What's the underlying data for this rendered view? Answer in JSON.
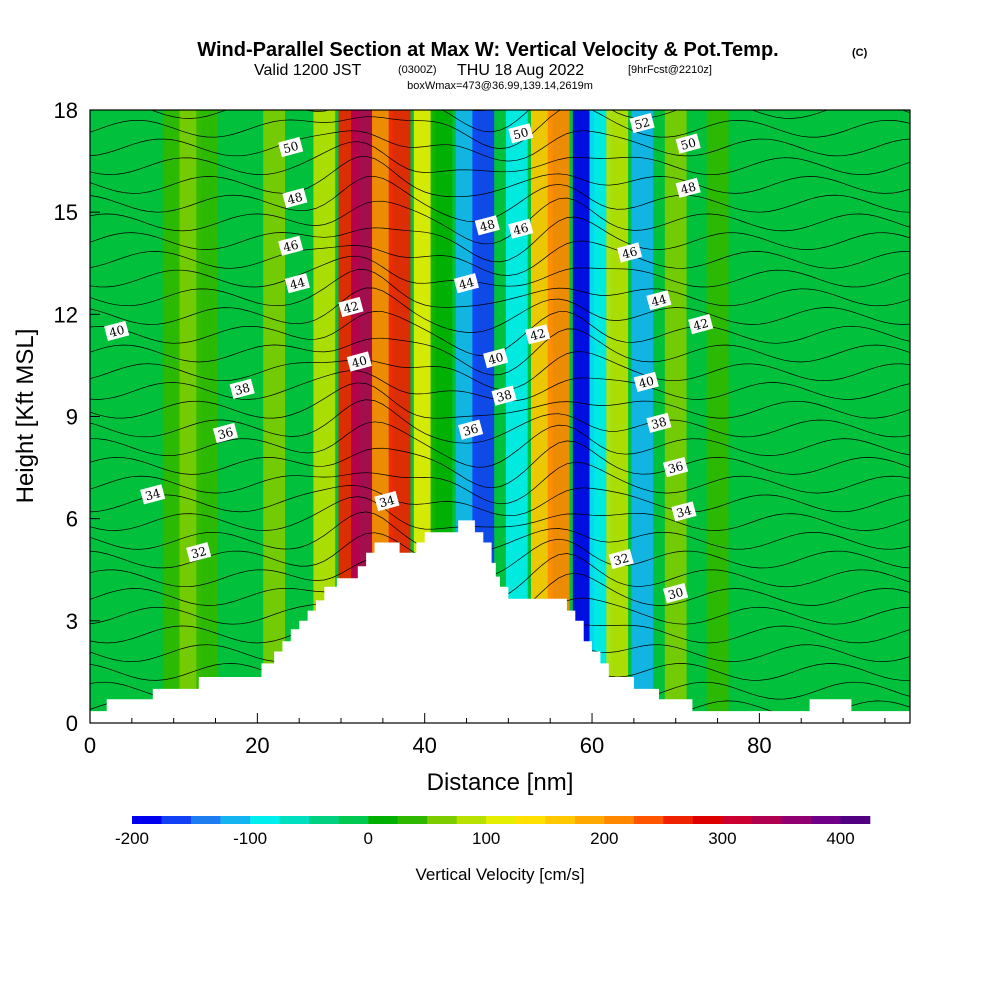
{
  "title": {
    "main": "Wind-Parallel Section at Max W: Vertical Velocity & Pot.Temp.",
    "copyright": "(C)",
    "valid_prefix": "Valid 1200 JST",
    "valid_utc": "(0300Z)",
    "valid_date": "THU 18 Aug 2022",
    "forecast": "[9hrFcst@2210z]",
    "box_info": "boxWmax=473@36.99,139.14,2619m"
  },
  "chart_data": {
    "type": "heatmap",
    "xlabel": "Distance [nm]",
    "ylabel": "Height [Kft MSL]",
    "xlim": [
      0,
      98
    ],
    "ylim": [
      0,
      18
    ],
    "x_ticks": [
      0,
      20,
      40,
      60,
      80
    ],
    "y_ticks": [
      0,
      3,
      6,
      9,
      12,
      15,
      18
    ],
    "colorbar": {
      "label": "Vertical Velocity [cm/s]",
      "ticks": [
        -200,
        -100,
        0,
        100,
        200,
        300,
        400
      ],
      "range": [
        -200,
        425
      ],
      "bin": 25,
      "colors": [
        "#0000ee",
        "#1140f5",
        "#1c7cf0",
        "#14b4f0",
        "#00eeee",
        "#00e0c0",
        "#00d080",
        "#00c850",
        "#00b000",
        "#2fb800",
        "#7ccc00",
        "#b8e000",
        "#e6ee00",
        "#ffe000",
        "#ffc800",
        "#ffa800",
        "#ff8800",
        "#ff5500",
        "#ee2200",
        "#dd0000",
        "#cc0030",
        "#b00050",
        "#900070",
        "#700088",
        "#500080"
      ]
    },
    "vertical_velocity_columns": [
      {
        "x": 10,
        "w": 40
      },
      {
        "x": 12,
        "w": 60
      },
      {
        "x": 14,
        "w": 35
      },
      {
        "x": 22,
        "w": 50
      },
      {
        "x": 28,
        "w": 80
      },
      {
        "x": 31,
        "w": 250
      },
      {
        "x": 32.5,
        "w": 330
      },
      {
        "x": 35,
        "w": 220
      },
      {
        "x": 37,
        "w": 250
      },
      {
        "x": 40,
        "w": 120
      },
      {
        "x": 42,
        "w": 20
      },
      {
        "x": 45,
        "w": -110
      },
      {
        "x": 47,
        "w": -160
      },
      {
        "x": 51,
        "w": -100
      },
      {
        "x": 54,
        "w": 150
      },
      {
        "x": 56,
        "w": 200
      },
      {
        "x": 59,
        "w": -190
      },
      {
        "x": 61,
        "w": -80
      },
      {
        "x": 63,
        "w": 90
      },
      {
        "x": 66,
        "w": -120
      },
      {
        "x": 70,
        "w": 50
      },
      {
        "x": 75,
        "w": 40
      }
    ],
    "terrain_profile": [
      {
        "x": 0,
        "h": 0.35
      },
      {
        "x": 2,
        "h": 0.7
      },
      {
        "x": 7.5,
        "h": 1.0
      },
      {
        "x": 13,
        "h": 1.35
      },
      {
        "x": 20.5,
        "h": 1.75
      },
      {
        "x": 22,
        "h": 2.1
      },
      {
        "x": 23,
        "h": 2.4
      },
      {
        "x": 24,
        "h": 2.75
      },
      {
        "x": 25,
        "h": 3.0
      },
      {
        "x": 26,
        "h": 3.3
      },
      {
        "x": 27,
        "h": 3.6
      },
      {
        "x": 28,
        "h": 4.0
      },
      {
        "x": 29.5,
        "h": 4.25
      },
      {
        "x": 32,
        "h": 4.6
      },
      {
        "x": 33,
        "h": 5.0
      },
      {
        "x": 34,
        "h": 5.3
      },
      {
        "x": 37,
        "h": 5.0
      },
      {
        "x": 39,
        "h": 5.3
      },
      {
        "x": 40,
        "h": 5.6
      },
      {
        "x": 44,
        "h": 5.95
      },
      {
        "x": 46,
        "h": 5.6
      },
      {
        "x": 47,
        "h": 5.3
      },
      {
        "x": 48,
        "h": 4.7
      },
      {
        "x": 48.5,
        "h": 4.3
      },
      {
        "x": 49,
        "h": 4.0
      },
      {
        "x": 50,
        "h": 3.65
      },
      {
        "x": 57,
        "h": 3.3
      },
      {
        "x": 58,
        "h": 3.0
      },
      {
        "x": 59,
        "h": 2.4
      },
      {
        "x": 60,
        "h": 2.1
      },
      {
        "x": 61,
        "h": 1.75
      },
      {
        "x": 62,
        "h": 1.35
      },
      {
        "x": 65,
        "h": 1.0
      },
      {
        "x": 68,
        "h": 0.7
      },
      {
        "x": 72,
        "h": 0.35
      },
      {
        "x": 86,
        "h": 0.7
      },
      {
        "x": 91,
        "h": 0.35
      },
      {
        "x": 98,
        "h": 0.35
      }
    ],
    "theta_contour_labels": [
      {
        "text": "50",
        "x": 24,
        "y": 16.9
      },
      {
        "text": "48",
        "x": 24.5,
        "y": 15.4
      },
      {
        "text": "46",
        "x": 24,
        "y": 14.0
      },
      {
        "text": "44",
        "x": 24.8,
        "y": 12.9
      },
      {
        "text": "42",
        "x": 31.2,
        "y": 12.2
      },
      {
        "text": "40",
        "x": 32.2,
        "y": 10.6
      },
      {
        "text": "40",
        "x": 3.2,
        "y": 11.5
      },
      {
        "text": "38",
        "x": 18.2,
        "y": 9.8
      },
      {
        "text": "36",
        "x": 16.2,
        "y": 8.5
      },
      {
        "text": "34",
        "x": 7.5,
        "y": 6.7
      },
      {
        "text": "34",
        "x": 35.5,
        "y": 6.5
      },
      {
        "text": "32",
        "x": 13,
        "y": 5.0
      },
      {
        "text": "50",
        "x": 51.5,
        "y": 17.3
      },
      {
        "text": "48",
        "x": 47.5,
        "y": 14.6
      },
      {
        "text": "46",
        "x": 51.5,
        "y": 14.5
      },
      {
        "text": "44",
        "x": 45,
        "y": 12.9
      },
      {
        "text": "42",
        "x": 53.5,
        "y": 11.4
      },
      {
        "text": "40",
        "x": 48.5,
        "y": 10.7
      },
      {
        "text": "38",
        "x": 49.5,
        "y": 9.6
      },
      {
        "text": "36",
        "x": 45.5,
        "y": 8.6
      },
      {
        "text": "52",
        "x": 66,
        "y": 17.6
      },
      {
        "text": "50",
        "x": 71.5,
        "y": 17.0
      },
      {
        "text": "48",
        "x": 71.5,
        "y": 15.7
      },
      {
        "text": "46",
        "x": 64.5,
        "y": 13.8
      },
      {
        "text": "44",
        "x": 68,
        "y": 12.4
      },
      {
        "text": "42",
        "x": 73,
        "y": 11.7
      },
      {
        "text": "40",
        "x": 66.5,
        "y": 10.0
      },
      {
        "text": "38",
        "x": 68,
        "y": 8.8
      },
      {
        "text": "36",
        "x": 70,
        "y": 7.5
      },
      {
        "text": "34",
        "x": 71,
        "y": 6.2
      },
      {
        "text": "32",
        "x": 63.5,
        "y": 4.8
      },
      {
        "text": "30",
        "x": 70,
        "y": 3.8
      }
    ]
  }
}
